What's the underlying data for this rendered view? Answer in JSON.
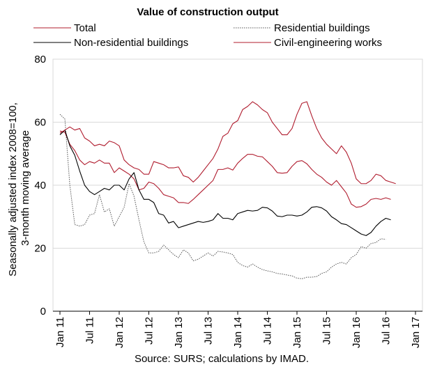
{
  "chart_data": {
    "type": "line",
    "title": "Value of construction output",
    "xlabel": "",
    "ylabel": "Seasonally adjusted index 2008=100, 3-month moving average",
    "source": "Source: SURS; calculations by IMAD.",
    "ylim": [
      0,
      80
    ],
    "yticks": [
      0,
      20,
      40,
      60,
      80
    ],
    "x_start": "Jan 11",
    "x_tick_labels": [
      "Jan 11",
      "Jul 11",
      "Jan 12",
      "Jul 12",
      "Jan 13",
      "Jul 13",
      "Jan 14",
      "Jul 14",
      "Jan 15",
      "Jul 15",
      "Jan 16",
      "Jul 16",
      "Jan 17"
    ],
    "grid": true,
    "legend_position": "top",
    "series": [
      {
        "name": "Total",
        "color": "#b01c2e",
        "dash": "solid",
        "values": [
          57.2,
          56.8,
          53.0,
          51.0,
          48.0,
          46.5,
          47.5,
          47.0,
          48.0,
          47.0,
          47.0,
          44.0,
          45.5,
          44.5,
          43.5,
          42.0,
          38.5,
          39.0,
          41.0,
          40.5,
          39.0,
          37.0,
          36.5,
          36.0,
          34.5,
          34.5,
          34.2,
          35.5,
          37.0,
          38.5,
          40.0,
          41.5,
          45.0,
          45.0,
          45.5,
          44.8,
          47.0,
          48.5,
          49.8,
          49.8,
          49.2,
          49.0,
          47.5,
          46.0,
          44.0,
          43.8,
          44.0,
          46.0,
          47.5,
          47.8,
          46.8,
          45.0,
          43.5,
          42.5,
          41.0,
          40.0,
          41.5,
          39.5,
          37.5,
          34.0,
          33.0,
          33.2,
          34.0,
          35.5,
          35.8,
          35.5,
          36.0,
          35.5
        ]
      },
      {
        "name": "Residential buildings",
        "color": "#555555",
        "dash": "dotted",
        "values": [
          62.5,
          61.0,
          40.0,
          27.5,
          27.0,
          27.5,
          30.5,
          31.0,
          37.0,
          31.5,
          32.5,
          27.0,
          30.0,
          33.0,
          40.5,
          36.5,
          29.0,
          22.0,
          18.5,
          18.5,
          19.0,
          21.0,
          19.5,
          18.0,
          17.0,
          19.5,
          18.5,
          16.0,
          16.5,
          17.5,
          18.5,
          17.5,
          19.0,
          18.8,
          18.5,
          18.0,
          15.5,
          14.5,
          14.0,
          15.0,
          14.0,
          13.2,
          12.8,
          12.5,
          12.0,
          11.8,
          11.5,
          11.2,
          10.5,
          10.3,
          10.8,
          10.8,
          11.0,
          12.0,
          12.5,
          14.0,
          15.0,
          15.5,
          15.0,
          17.0,
          18.0,
          20.5,
          20.0,
          21.5,
          21.8,
          23.0,
          22.8
        ]
      },
      {
        "name": "Non-residential buildings",
        "color": "#000000",
        "dash": "solid",
        "values": [
          56.0,
          57.5,
          52.5,
          49.5,
          44.5,
          40.0,
          38.0,
          37.0,
          38.0,
          39.0,
          38.5,
          40.0,
          40.0,
          38.5,
          42.0,
          44.0,
          38.5,
          35.5,
          35.5,
          34.5,
          31.0,
          30.5,
          28.0,
          28.5,
          26.5,
          27.0,
          27.5,
          28.0,
          28.5,
          28.2,
          28.5,
          29.0,
          31.0,
          29.5,
          29.5,
          29.0,
          31.0,
          31.5,
          32.0,
          31.8,
          32.0,
          33.0,
          32.8,
          31.8,
          30.2,
          30.0,
          30.5,
          30.5,
          30.2,
          30.5,
          31.5,
          33.0,
          33.2,
          32.8,
          31.8,
          30.0,
          29.0,
          27.8,
          27.5,
          26.5,
          25.5,
          24.5,
          24.0,
          25.0,
          27.0,
          28.5,
          29.5,
          29.0
        ]
      },
      {
        "name": "Civil-engineering works",
        "color": "#b01c2e",
        "dash": "solid",
        "values": [
          56.5,
          57.5,
          58.5,
          57.5,
          58.0,
          55.0,
          54.0,
          52.5,
          53.0,
          52.5,
          54.0,
          53.5,
          52.5,
          48.0,
          46.5,
          45.5,
          45.0,
          43.5,
          43.5,
          47.5,
          47.0,
          46.5,
          45.5,
          45.5,
          45.8,
          43.0,
          42.5,
          41.0,
          42.5,
          44.5,
          46.5,
          48.5,
          51.5,
          55.5,
          56.5,
          59.5,
          60.5,
          64.0,
          65.0,
          66.5,
          65.5,
          64.0,
          63.0,
          60.0,
          58.0,
          56.0,
          56.0,
          58.0,
          62.5,
          66.0,
          66.5,
          62.0,
          58.0,
          55.0,
          53.0,
          51.5,
          50.0,
          52.5,
          50.5,
          47.0,
          42.0,
          40.5,
          40.5,
          41.5,
          43.5,
          43.0,
          41.5,
          41.0,
          40.5
        ]
      }
    ]
  }
}
